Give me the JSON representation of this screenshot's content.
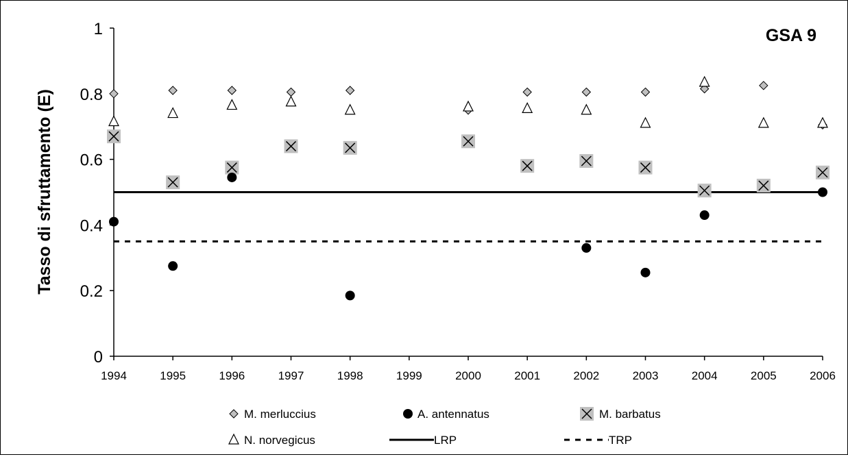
{
  "chart_data": {
    "type": "scatter",
    "title": "GSA 9",
    "xlabel": "",
    "ylabel": "Tasso di sfruttamento (E)",
    "ylim": [
      0,
      1
    ],
    "yticks": [
      "0",
      "0.2",
      "0.4",
      "0.6",
      "0.8",
      "1"
    ],
    "categories": [
      "1994",
      "1995",
      "1996",
      "1997",
      "1998",
      "1999",
      "2000",
      "2001",
      "2002",
      "2003",
      "2004",
      "2005",
      "2006"
    ],
    "grid": false,
    "legend_position": "bottom",
    "series": [
      {
        "name": "M. merluccius",
        "marker": "diamond",
        "color": "#c0c0c0",
        "values": [
          0.8,
          0.81,
          0.81,
          0.805,
          0.81,
          null,
          0.75,
          0.805,
          0.805,
          0.805,
          0.815,
          0.825,
          0.705
        ]
      },
      {
        "name": "A. antennatus",
        "marker": "circle",
        "color": "#000000",
        "values": [
          0.41,
          0.275,
          0.545,
          null,
          0.185,
          null,
          null,
          null,
          0.33,
          0.255,
          0.43,
          null,
          0.5
        ]
      },
      {
        "name": "M. barbatus",
        "marker": "x-square",
        "color": "#c0c0c0",
        "values": [
          0.67,
          0.53,
          0.575,
          0.64,
          0.635,
          null,
          0.655,
          0.58,
          0.595,
          0.575,
          0.505,
          0.52,
          0.56
        ]
      },
      {
        "name": "N. norvegicus",
        "marker": "triangle",
        "color": "#ffffff",
        "values": [
          0.715,
          0.74,
          0.765,
          0.775,
          0.75,
          null,
          0.76,
          0.755,
          0.75,
          0.71,
          0.835,
          0.71,
          0.71
        ]
      }
    ],
    "reference_lines": [
      {
        "name": "LRP",
        "value": 0.5,
        "style": "solid"
      },
      {
        "name": "TRP",
        "value": 0.35,
        "style": "dashed"
      }
    ]
  }
}
